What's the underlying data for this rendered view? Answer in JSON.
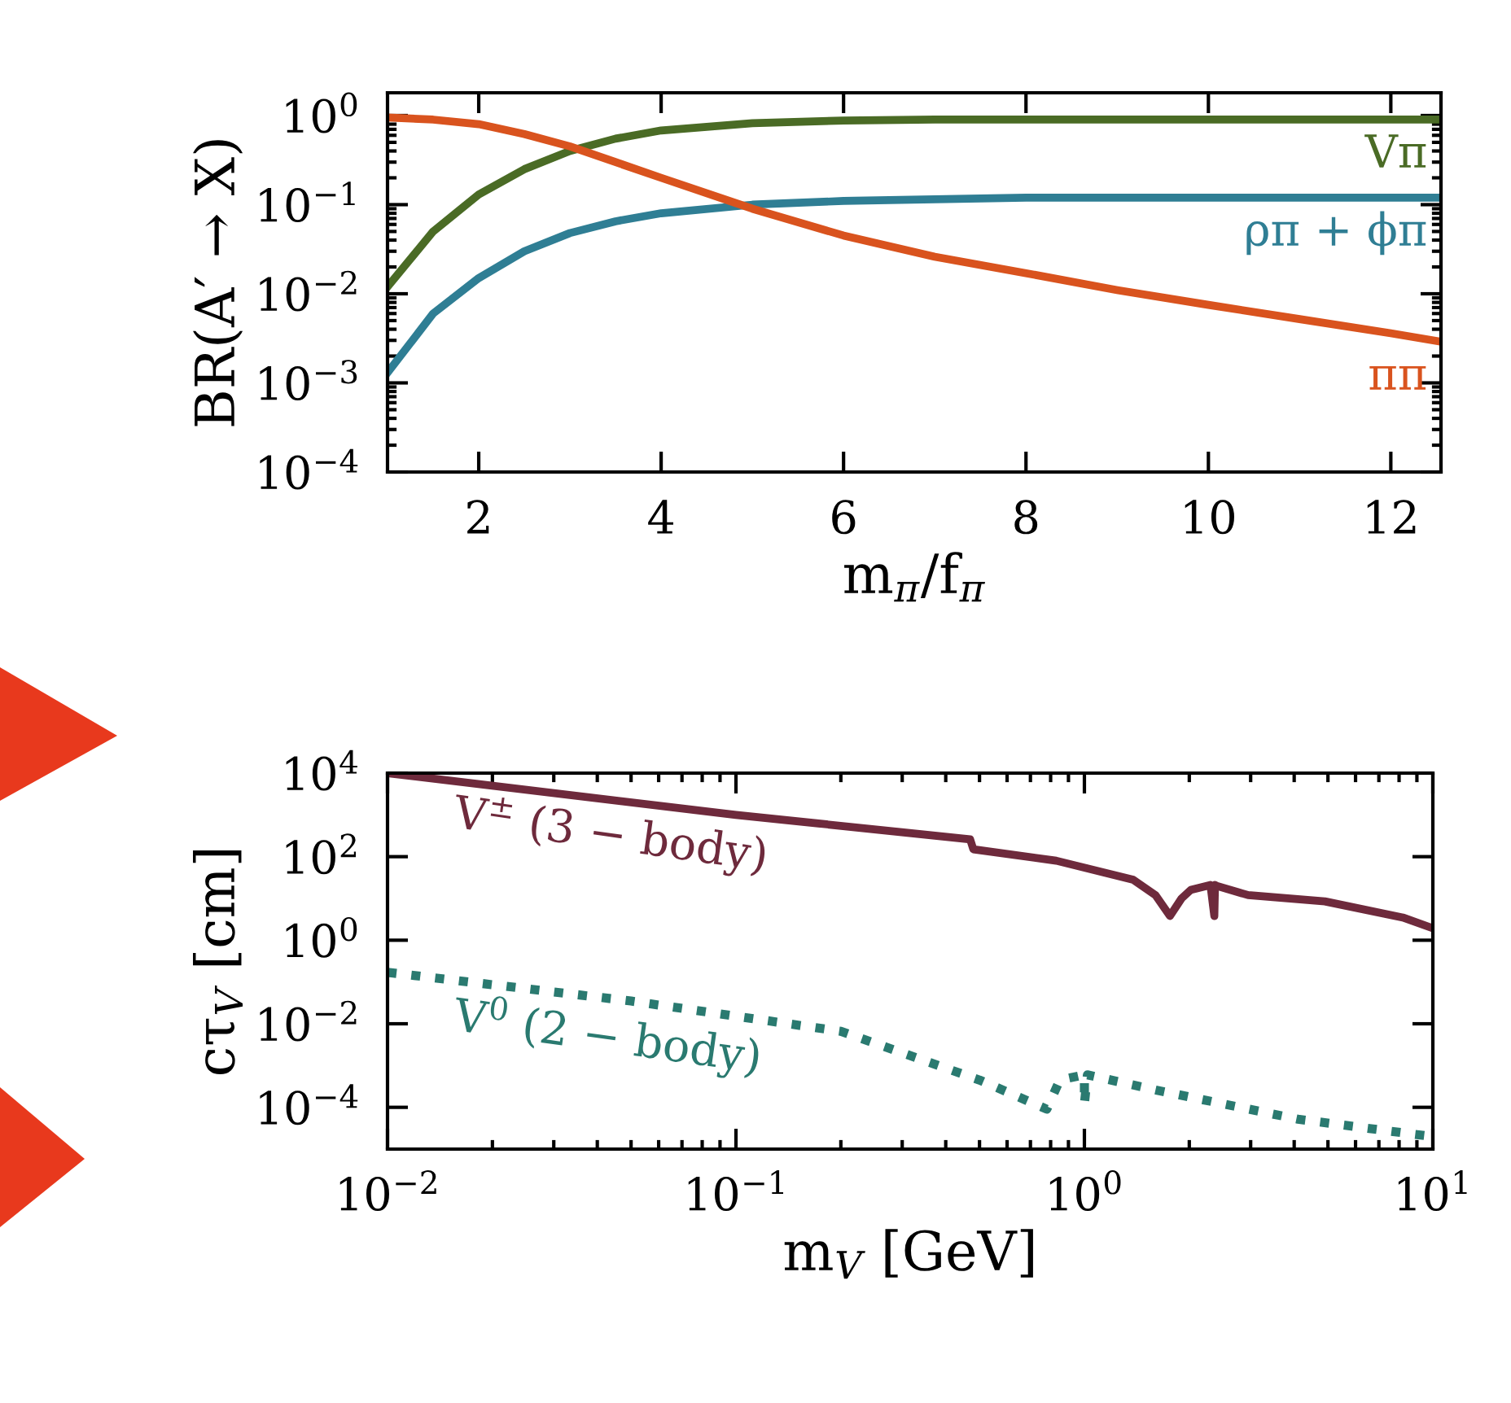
{
  "chart_data": [
    {
      "type": "line",
      "ylabel": "BR(A′ → X)",
      "xlabel": "m$_{π}$/f$_{π}$",
      "log": "y",
      "xlim": [
        1,
        12.55
      ],
      "ylim": [
        0.0001,
        1.8
      ],
      "xticks": [
        2,
        4,
        6,
        8,
        10,
        12
      ],
      "yticks": [
        {
          "value": 1,
          "label": "10$^{0}$"
        },
        {
          "value": 0.1,
          "label": "10$^{−1}$"
        },
        {
          "value": 0.01,
          "label": "10$^{−2}$"
        },
        {
          "value": 0.001,
          "label": "10$^{−3}$"
        },
        {
          "value": 0.0001,
          "label": "10$^{−4}$"
        }
      ],
      "series": [
        {
          "name": "Vπ",
          "color": "#4a6b25",
          "line_style": "solid",
          "x": [
            1,
            1.5,
            2,
            2.5,
            3,
            3.5,
            4,
            5,
            6,
            7,
            8,
            9,
            10,
            11,
            12,
            12.55
          ],
          "values": [
            0.012,
            0.05,
            0.13,
            0.25,
            0.4,
            0.55,
            0.68,
            0.82,
            0.88,
            0.9,
            0.9,
            0.9,
            0.9,
            0.9,
            0.9,
            0.9
          ]
        },
        {
          "name": "ρπ + ϕπ",
          "color": "#2f7e94",
          "line_style": "solid",
          "x": [
            1,
            1.5,
            2,
            2.5,
            3,
            3.5,
            4,
            5,
            6,
            7,
            8,
            9,
            10,
            11,
            12,
            12.55
          ],
          "values": [
            0.0013,
            0.006,
            0.015,
            0.03,
            0.048,
            0.065,
            0.08,
            0.1,
            0.11,
            0.115,
            0.12,
            0.12,
            0.12,
            0.12,
            0.12,
            0.12
          ]
        },
        {
          "name": "ππ",
          "color": "#d9531e",
          "line_style": "solid",
          "x": [
            1,
            1.5,
            2,
            2.5,
            3,
            3.5,
            4,
            5,
            6,
            7,
            8,
            9,
            10,
            11,
            12,
            12.55
          ],
          "values": [
            0.95,
            0.9,
            0.8,
            0.62,
            0.45,
            0.3,
            0.2,
            0.09,
            0.045,
            0.026,
            0.017,
            0.011,
            0.0075,
            0.0052,
            0.0036,
            0.0029
          ]
        }
      ]
    },
    {
      "type": "line",
      "ylabel": "cτ$_{V}$ [cm]",
      "xlabel": "m$_{V}$ [GeV]",
      "log": "xy",
      "xlim": [
        0.01,
        10
      ],
      "ylim": [
        1e-05,
        10000
      ],
      "xticks": [
        {
          "value": 0.01,
          "label": "10$^{−2}$"
        },
        {
          "value": 0.1,
          "label": "10$^{−1}$"
        },
        {
          "value": 1,
          "label": "10$^{0}$"
        },
        {
          "value": 10,
          "label": "10$^{1}$"
        }
      ],
      "yticks": [
        {
          "value": 10000,
          "label": "10$^{4}$"
        },
        {
          "value": 100,
          "label": "10$^{2}$"
        },
        {
          "value": 1,
          "label": "10$^{0}$"
        },
        {
          "value": 0.01,
          "label": "10$^{−2}$"
        },
        {
          "value": 0.0001,
          "label": "10$^{−4}$"
        }
      ],
      "series": [
        {
          "name": "V$^{±}$ (3 − body)",
          "color": "#6e2a3c",
          "line_style": "solid",
          "x": [
            0.01,
            0.1,
            0.47,
            0.48,
            0.83,
            1.38,
            1.6,
            1.76,
            1.9,
            2.02,
            2.3,
            2.36,
            2.37,
            2.4,
            2.95,
            4.9,
            8.2,
            9.9
          ],
          "values": [
            10000,
            1000,
            260,
            150,
            80,
            28,
            12,
            3.8,
            10,
            16,
            21,
            3.8,
            21,
            20,
            12,
            8.5,
            3.5,
            2
          ]
        },
        {
          "name": "V$^{0}$ (2 − body)",
          "color": "#2a7a70",
          "line_style": "dotted",
          "x": [
            0.01,
            0.05,
            0.2,
            0.5,
            0.78,
            0.85,
            1.0,
            1.0,
            1.02,
            1.6,
            4.1,
            8.7,
            10
          ],
          "values": [
            0.17,
            0.035,
            0.0066,
            0.00045,
            9e-05,
            0.00045,
            0.0006,
            0.00012,
            0.0006,
            0.00026,
            5.2e-05,
            2.3e-05,
            2e-05
          ]
        }
      ]
    }
  ]
}
